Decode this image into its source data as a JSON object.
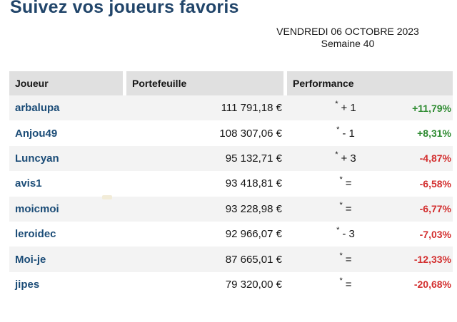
{
  "page": {
    "title": "Suivez vos joueurs favoris",
    "date_line": "VENDREDI 06 OCTOBRE 2023",
    "week_line": "Semaine 40"
  },
  "colors": {
    "title_blue": "#21456a",
    "player_link_blue": "#1b4c77",
    "header_bg": "#e0e0e0",
    "stripe_bg": "#f3f3f3",
    "positive_green": "#2e8b31",
    "negative_red": "#d32f2f"
  },
  "table": {
    "headers": {
      "player": "Joueur",
      "portfolio": "Portefeuille",
      "performance": "Performance"
    },
    "rows": [
      {
        "player": "arbalupa",
        "portfolio": "111 791,18 €",
        "rank_marker": "*",
        "rank_change": "+ 1",
        "performance": "+11,79%",
        "perf_color": "#2e8b31"
      },
      {
        "player": "Anjou49",
        "portfolio": "108 307,06 €",
        "rank_marker": "*",
        "rank_change": "- 1",
        "performance": "+8,31%",
        "perf_color": "#2e8b31"
      },
      {
        "player": "Luncyan",
        "portfolio": "95 132,71 €",
        "rank_marker": "*",
        "rank_change": "+ 3",
        "performance": "-4,87%",
        "perf_color": "#d32f2f"
      },
      {
        "player": "avis1",
        "portfolio": "93 418,81 €",
        "rank_marker": "*",
        "rank_change": "=",
        "performance": "-6,58%",
        "perf_color": "#d32f2f"
      },
      {
        "player": "moicmoi",
        "portfolio": "93 228,98 €",
        "rank_marker": "*",
        "rank_change": "=",
        "performance": "-6,77%",
        "perf_color": "#d32f2f"
      },
      {
        "player": "leroidec",
        "portfolio": "92 966,07 €",
        "rank_marker": "*",
        "rank_change": "- 3",
        "performance": "-7,03%",
        "perf_color": "#d32f2f"
      },
      {
        "player": "Moi-je",
        "portfolio": "87 665,01 €",
        "rank_marker": "*",
        "rank_change": "=",
        "performance": "-12,33%",
        "perf_color": "#d32f2f"
      },
      {
        "player": "jipes",
        "portfolio": "79 320,00 €",
        "rank_marker": "*",
        "rank_change": "=",
        "performance": "-20,68%",
        "perf_color": "#d32f2f"
      }
    ]
  }
}
